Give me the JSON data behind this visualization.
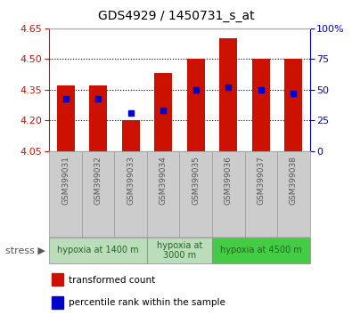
{
  "title": "GDS4929 / 1450731_s_at",
  "samples": [
    "GSM399031",
    "GSM399032",
    "GSM399033",
    "GSM399034",
    "GSM399035",
    "GSM399036",
    "GSM399037",
    "GSM399038"
  ],
  "transformed_counts": [
    4.37,
    4.37,
    4.2,
    4.43,
    4.5,
    4.6,
    4.5,
    4.5
  ],
  "percentile_ranks": [
    43,
    43,
    31,
    33,
    50,
    52,
    50,
    47
  ],
  "y_min": 4.05,
  "y_max": 4.65,
  "y_ticks": [
    4.05,
    4.2,
    4.35,
    4.5,
    4.65
  ],
  "y_right_ticks": [
    0,
    25,
    50,
    75,
    100
  ],
  "bar_color": "#cc1100",
  "dot_color": "#0000cc",
  "bar_bottom": 4.05,
  "stress_groups": [
    {
      "label": "hypoxia at 1400 m",
      "samples": [
        0,
        1,
        2
      ],
      "color": "#bbddbb"
    },
    {
      "label": "hypoxia at\n3000 m",
      "samples": [
        3,
        4
      ],
      "color": "#bbddbb"
    },
    {
      "label": "hypoxia at 4500 m",
      "samples": [
        5,
        6,
        7
      ],
      "color": "#44cc44"
    }
  ],
  "legend_items": [
    {
      "color": "#cc1100",
      "label": "transformed count"
    },
    {
      "color": "#0000cc",
      "label": "percentile rank within the sample"
    }
  ],
  "ylabel_left_color": "#cc1100",
  "ylabel_right_color": "#0000cc",
  "sample_box_color": "#cccccc",
  "sample_text_color": "#555555",
  "grid_color": "black",
  "title_color": "black"
}
